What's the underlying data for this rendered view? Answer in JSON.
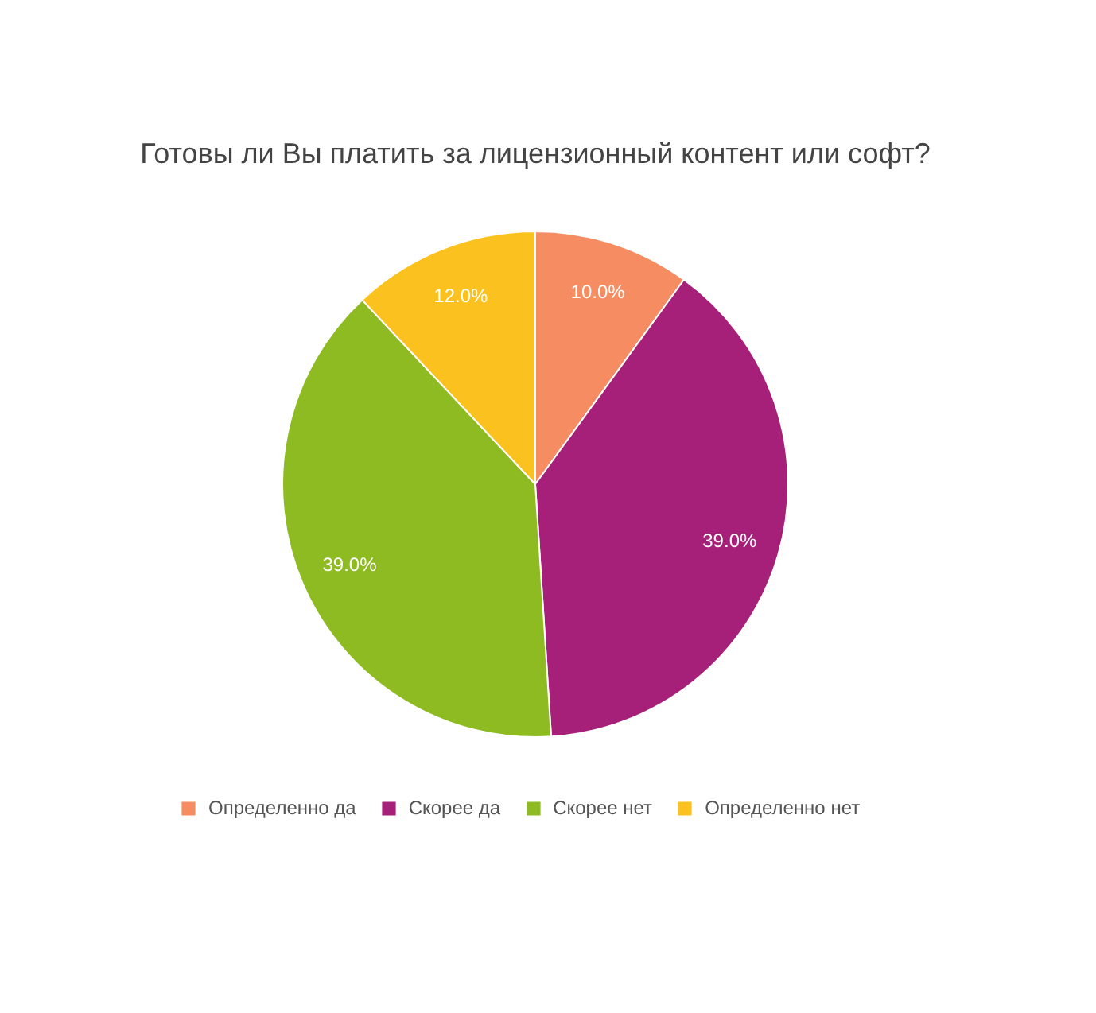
{
  "chart_data": {
    "type": "pie",
    "title": "Готовы ли Вы платить за лицензионный контент или софт?",
    "categories": [
      "Определенно да",
      "Скорее да",
      "Скорее нет",
      "Определенно нет"
    ],
    "values": [
      10,
      39,
      39,
      12
    ],
    "value_labels": [
      "10.0%",
      "39.0%",
      "39.0%",
      "12.0%"
    ],
    "colors": [
      "#f68d62",
      "#a61f78",
      "#8eba22",
      "#fbc21f"
    ],
    "legend": "bottom"
  }
}
